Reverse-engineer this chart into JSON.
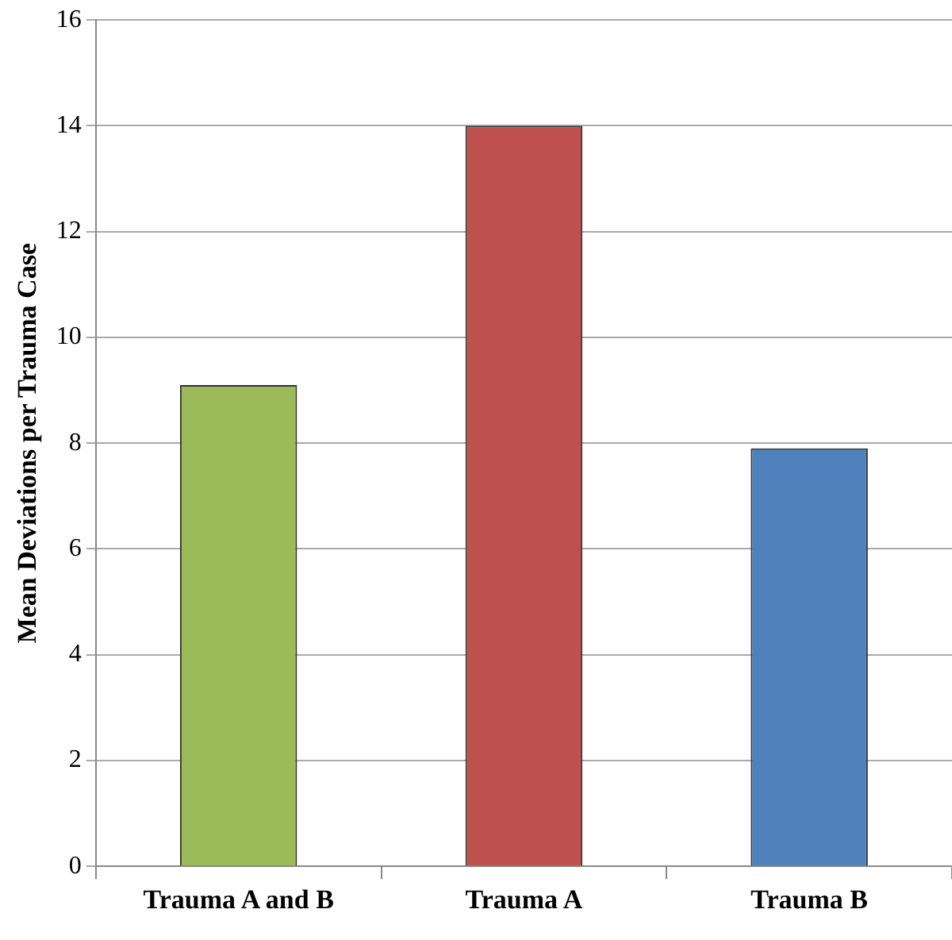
{
  "chart_data": {
    "type": "bar",
    "ylabel": "Mean Deviations per Trauma Case",
    "categories": [
      "Trauma A and B",
      "Trauma A",
      "Trauma B"
    ],
    "values": [
      9.1,
      14,
      7.9
    ],
    "colors": [
      "#9bbb59",
      "#c0504d",
      "#4f81bd"
    ],
    "ylim": [
      0,
      16
    ],
    "yticks": [
      0,
      2,
      4,
      6,
      8,
      10,
      12,
      14,
      16
    ],
    "grid": "y",
    "legend": false
  }
}
